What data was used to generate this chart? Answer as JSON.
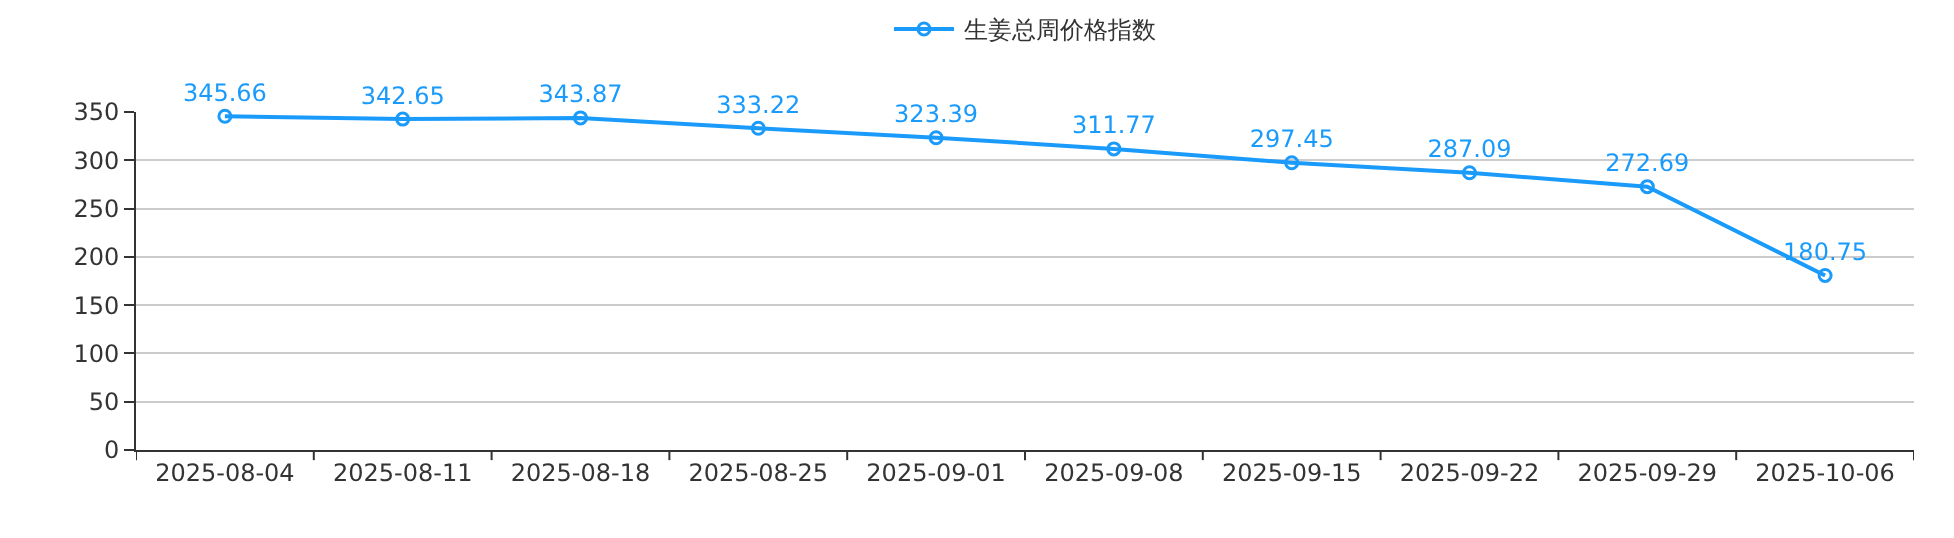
{
  "chart_data": {
    "type": "line",
    "categories": [
      "2025-08-04",
      "2025-08-11",
      "2025-08-18",
      "2025-08-25",
      "2025-09-01",
      "2025-09-08",
      "2025-09-15",
      "2025-09-22",
      "2025-09-29",
      "2025-10-06"
    ],
    "series": [
      {
        "name": "生姜总周价格指数",
        "color": "#1a9bfc",
        "values": [
          345.66,
          342.65,
          343.87,
          333.22,
          323.39,
          311.77,
          297.45,
          287.09,
          272.69,
          180.75
        ]
      }
    ],
    "ylim": [
      0,
      350
    ],
    "yticks": [
      0,
      50,
      100,
      150,
      200,
      250,
      300,
      350
    ],
    "grid": "y",
    "legend": "top",
    "marker": "circle",
    "line_style": "solid",
    "data_labels": true
  }
}
